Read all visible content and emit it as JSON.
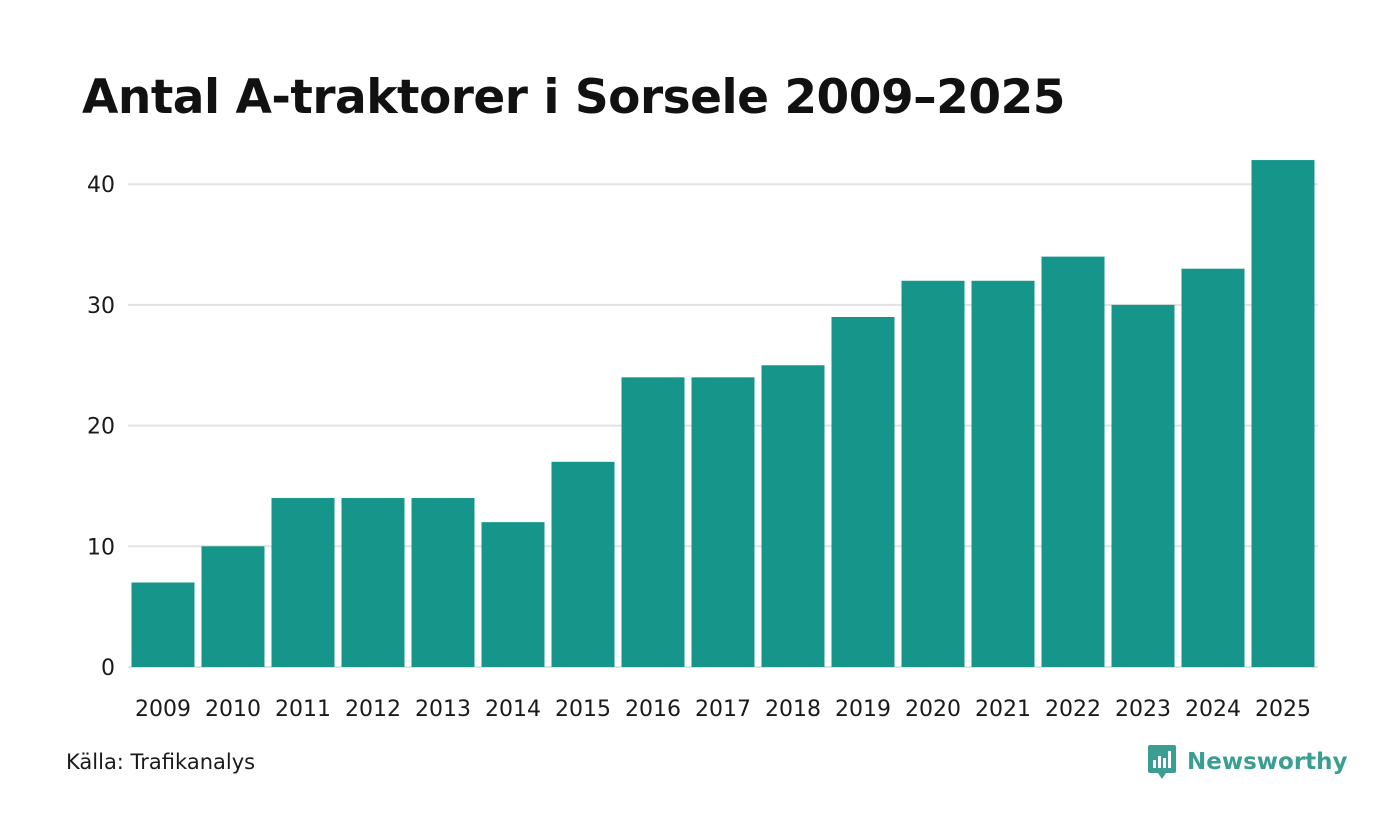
{
  "chart_data": {
    "type": "bar",
    "title": "Antal A-traktorer i Sorsele 2009–2025",
    "xlabel": "",
    "ylabel": "",
    "categories": [
      "2009",
      "2010",
      "2011",
      "2012",
      "2013",
      "2014",
      "2015",
      "2016",
      "2017",
      "2018",
      "2019",
      "2020",
      "2021",
      "2022",
      "2023",
      "2024",
      "2025"
    ],
    "values": [
      7,
      10,
      14,
      14,
      14,
      12,
      17,
      24,
      24,
      25,
      29,
      32,
      32,
      34,
      30,
      33,
      42
    ],
    "ylim": [
      0,
      43
    ],
    "yticks": [
      0,
      10,
      20,
      30,
      40
    ],
    "grid": true,
    "bar_color": "#16968a",
    "grid_color": "#e2e2e2"
  },
  "footer": {
    "source": "Källa: Trafikanalys",
    "brand": "Newsworthy",
    "brand_color": "#3a9f92"
  },
  "icons": {
    "brand": "newsworthy-logo-icon"
  }
}
